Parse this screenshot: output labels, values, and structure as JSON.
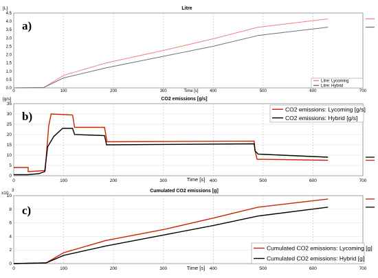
{
  "figure": {
    "panels": [
      {
        "label": "a)",
        "title": "Litre",
        "unit": "[L]",
        "xlabel": "Time [s]",
        "xticks": [
          "0",
          "100",
          "200",
          "300",
          "400",
          "500",
          "600",
          "700"
        ],
        "yticks": [
          "0.0",
          "0.5",
          "1.0",
          "1.5",
          "2.0",
          "2.5",
          "3.0",
          "3.5",
          "4.0",
          "4.5"
        ],
        "legend": [
          "Litre: Lycoming",
          "Litre: Hybrid"
        ]
      },
      {
        "label": "b)",
        "title": "CO2 emissions [g/s]",
        "unit": "[g/s]",
        "xlabel": "Time [s]",
        "xticks": [
          "0",
          "100",
          "200",
          "300",
          "400",
          "500",
          "600",
          "700"
        ],
        "yticks": [
          "0",
          "5",
          "10",
          "15",
          "20",
          "25",
          "30",
          "35"
        ],
        "legend": [
          "CO2 emissions: Lycoming [g/s]",
          "CO2 emissions: Hybrid [g/s]"
        ]
      },
      {
        "label": "c)",
        "title": "Cumulated CO2 emissions [g]",
        "unit": "x10",
        "unit_exp": "3",
        "xlabel": "Time [s]",
        "xticks": [
          "0",
          "100",
          "200",
          "300",
          "400",
          "500",
          "600",
          "700"
        ],
        "yticks": [
          "0",
          "2",
          "4",
          "6",
          "8",
          "10"
        ],
        "legend": [
          "Cumulated CO2 emissions: Lycoming [g]",
          "Cumulated CO2 emissions: Hybrid [g]"
        ]
      }
    ],
    "colors": {
      "lycoming_a": "#f08080",
      "hybrid_a": "#707070",
      "lycoming": "#cc2200",
      "hybrid": "#000000",
      "grid": "#bbbbbb"
    }
  },
  "chart_data": [
    {
      "type": "line",
      "title": "Litre",
      "xlabel": "Time [s]",
      "ylabel": "[L]",
      "xlim": [
        0,
        700
      ],
      "ylim": [
        0,
        4.5
      ],
      "grid": true,
      "legend_position": "bottom-right",
      "series": [
        {
          "name": "Litre: Lycoming",
          "x": [
            0,
            60,
            100,
            185,
            300,
            400,
            490,
            630
          ],
          "y": [
            0,
            0.02,
            0.75,
            1.5,
            2.25,
            2.95,
            3.65,
            4.15
          ]
        },
        {
          "name": "Litre: Hybrid",
          "x": [
            0,
            60,
            100,
            185,
            300,
            400,
            490,
            630
          ],
          "y": [
            0,
            0.02,
            0.6,
            1.2,
            1.9,
            2.5,
            3.15,
            3.65
          ]
        }
      ]
    },
    {
      "type": "line",
      "title": "CO2 emissions [g/s]",
      "xlabel": "Time [s]",
      "ylabel": "[g/s]",
      "xlim": [
        0,
        700
      ],
      "ylim": [
        0,
        35
      ],
      "grid": true,
      "legend_position": "top-right",
      "series": [
        {
          "name": "CO2 emissions: Lycoming [g/s]",
          "x": [
            0,
            29,
            29,
            63,
            70,
            75,
            118,
            122,
            182,
            187,
            482,
            484,
            488,
            630
          ],
          "y": [
            4,
            4,
            2,
            2.5,
            24,
            30,
            29.5,
            23.5,
            23.5,
            16.5,
            16.8,
            12,
            8,
            7.5
          ]
        },
        {
          "name": "CO2 emissions: Hybrid [g/s]",
          "x": [
            0,
            28,
            50,
            62,
            68,
            80,
            98,
            118,
            122,
            182,
            186,
            482,
            484,
            490,
            630
          ],
          "y": [
            0.5,
            0.5,
            1,
            2,
            14,
            19,
            23,
            23,
            20,
            19.5,
            15,
            15.5,
            12,
            10.5,
            9
          ]
        }
      ]
    },
    {
      "type": "line",
      "title": "Cumulated CO2 emissions [g]",
      "xlabel": "Time [s]",
      "ylabel": "x10^3",
      "xlim": [
        0,
        700
      ],
      "ylim": [
        0,
        10
      ],
      "grid": true,
      "legend_position": "bottom-right",
      "series": [
        {
          "name": "Cumulated CO2 emissions: Lycoming [g]",
          "x": [
            0,
            65,
            100,
            185,
            300,
            400,
            490,
            630
          ],
          "y": [
            0,
            0.1,
            1.6,
            3.4,
            5.0,
            6.7,
            8.3,
            9.5
          ]
        },
        {
          "name": "Cumulated CO2 emissions: Hybrid [g]",
          "x": [
            0,
            65,
            100,
            185,
            300,
            400,
            490,
            630
          ],
          "y": [
            0,
            0.1,
            1.2,
            2.6,
            4.2,
            5.6,
            7.0,
            8.3
          ]
        }
      ]
    }
  ]
}
